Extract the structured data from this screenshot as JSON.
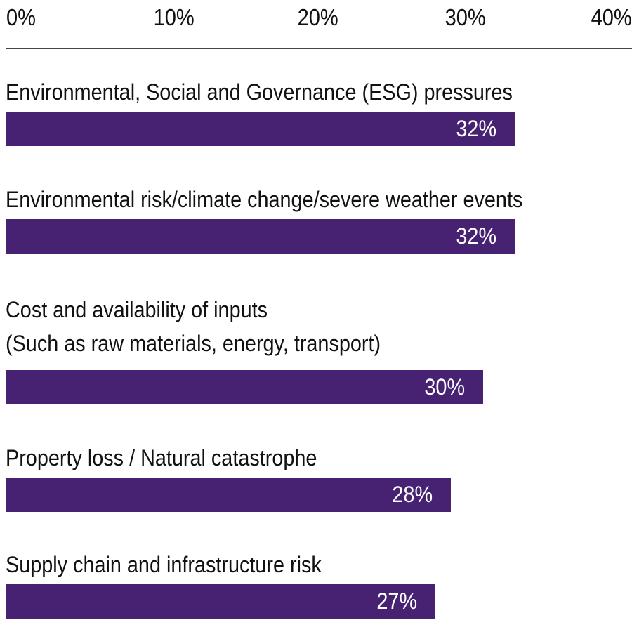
{
  "chart_data": {
    "type": "bar",
    "orientation": "horizontal",
    "title": "",
    "xlabel": "",
    "ylabel": "",
    "xlim": [
      0,
      40
    ],
    "x_ticks": [
      "0%",
      "10%",
      "20%",
      "30%",
      "40%"
    ],
    "categories": [
      [
        "Environmental, Social and Governance (ESG) pressures"
      ],
      [
        "Environmental risk/climate change/severe weather events"
      ],
      [
        "Cost and availability of inputs",
        "(Such as raw materials, energy, transport)"
      ],
      [
        "Property loss / Natural catastrophe"
      ],
      [
        "Supply chain and infrastructure risk"
      ]
    ],
    "values": [
      32,
      32,
      30,
      28,
      27
    ],
    "value_labels": [
      "32%",
      "32%",
      "30%",
      "28%",
      "27%"
    ],
    "bar_color": "#472273",
    "grid": false
  }
}
